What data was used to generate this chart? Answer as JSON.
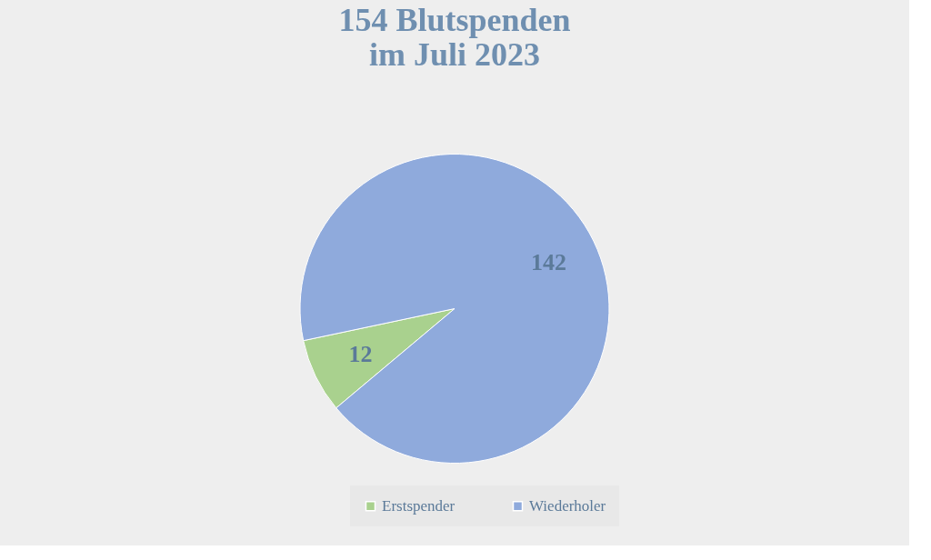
{
  "chart_data": {
    "type": "pie",
    "title": "154 Blutspenden\nim Juli 2023",
    "categories": [
      "Erstspender",
      "Wiederholer"
    ],
    "values": [
      12,
      142
    ],
    "colors": [
      "#a9d18e",
      "#8faadc"
    ],
    "data_labels": true,
    "legend": "bottom"
  }
}
